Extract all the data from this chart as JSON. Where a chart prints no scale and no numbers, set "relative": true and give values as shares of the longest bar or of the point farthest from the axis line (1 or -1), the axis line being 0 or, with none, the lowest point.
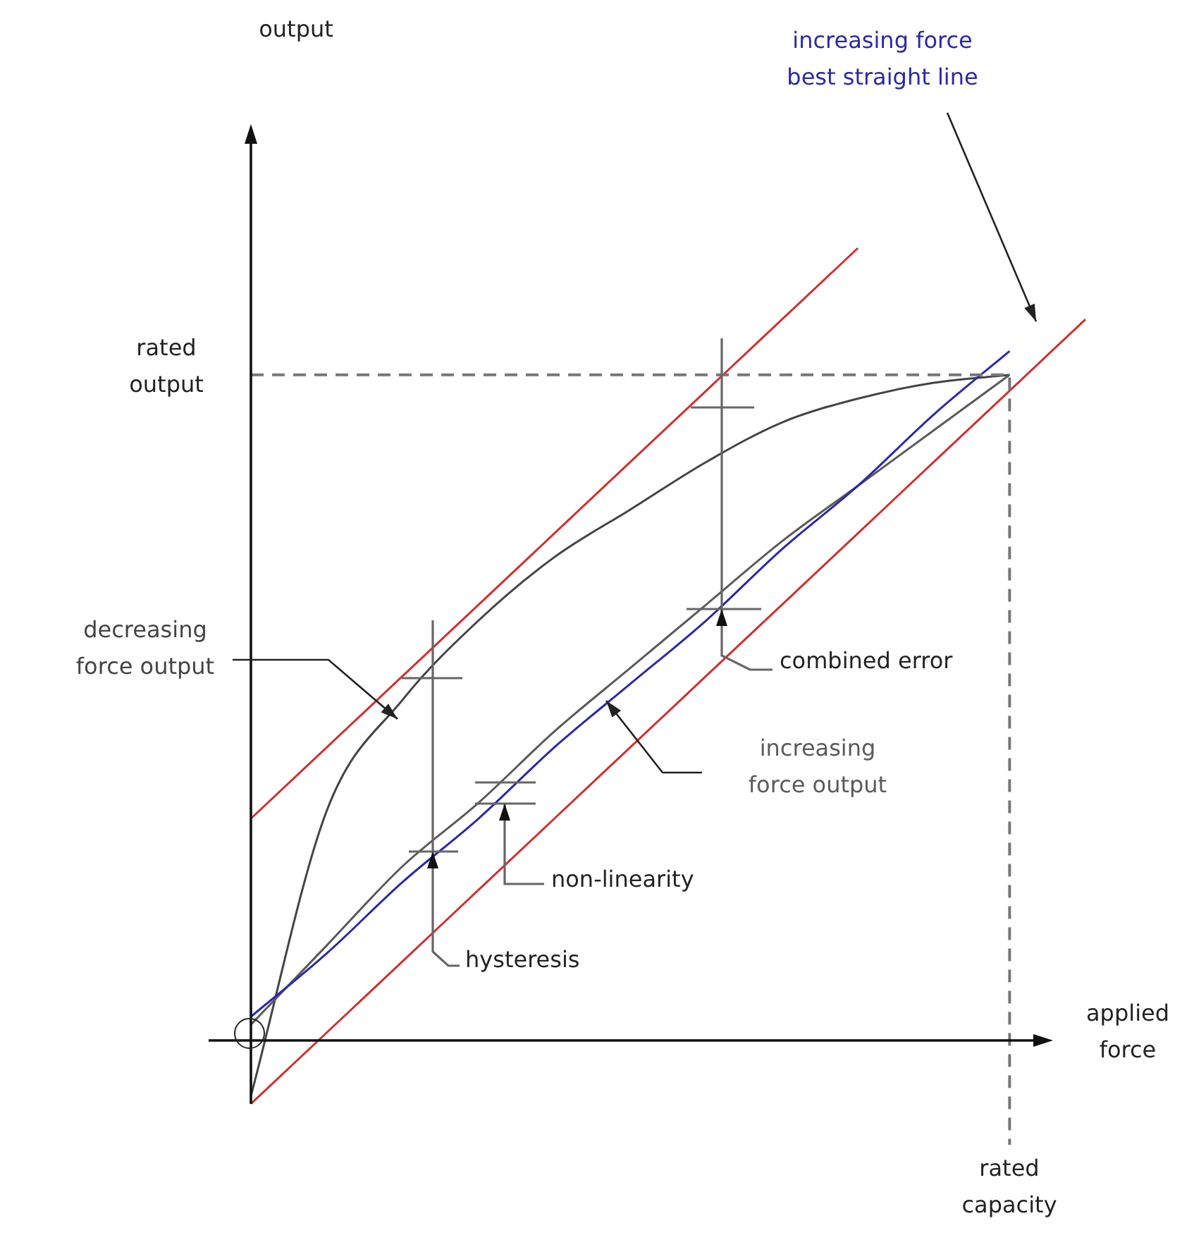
{
  "chart_data": {
    "type": "line",
    "relative": true,
    "xlabel": "applied force",
    "legend": false,
    "marker": "none",
    "line_style": "solid",
    "categories": [
      null,
      null,
      null,
      null,
      null,
      null,
      null,
      null,
      null,
      null,
      null,
      null
    ],
    "series": [
      {
        "color": "#d03030",
        "values": [
          0.28,
          0.37,
          0.46,
          0.55,
          0.64,
          0.73,
          0.82,
          0.91,
          1.0,
          null,
          null,
          null
        ]
      },
      {
        "color": "#d03030",
        "values": [
          -0.08,
          0.01,
          0.1,
          0.19,
          0.28,
          0.37,
          0.46,
          0.55,
          0.64,
          0.73,
          0.82,
          0.91
        ]
      },
      {
        "name": "increasing force best straight line",
        "color": "#2a2aa8",
        "values": [
          0.03,
          0.11,
          0.2,
          0.28,
          0.37,
          0.45,
          0.53,
          0.62,
          0.7,
          0.79,
          0.87,
          null
        ]
      },
      {
        "name": "increasing force output",
        "color": "#5a5a5a",
        "values": [
          0.02,
          0.12,
          0.22,
          0.3,
          0.39,
          0.47,
          0.55,
          0.63,
          0.7,
          0.77,
          0.84,
          null
        ]
      },
      {
        "name": "decreasing force output",
        "color": "#444444",
        "values": [
          -0.07,
          0.29,
          0.43,
          0.53,
          0.61,
          0.67,
          0.73,
          0.78,
          0.81,
          0.83,
          0.84,
          null
        ]
      }
    ],
    "ref_lines": [
      {
        "axis": "y",
        "value": 0.84,
        "label": "rated output",
        "color": "#777777",
        "line_style": "dashed"
      }
    ],
    "annotations": [
      "combined error",
      "non-linearity",
      "hysteresis",
      "rated capacity",
      "output"
    ]
  }
}
